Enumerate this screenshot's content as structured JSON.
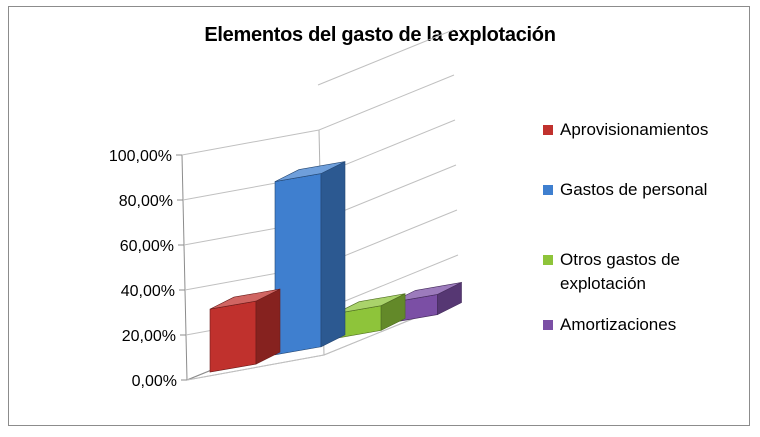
{
  "chart_data": {
    "type": "bar",
    "title": "Elementos del gasto de la explotación",
    "xlabel": "",
    "ylabel": "",
    "ylim": [
      0,
      100
    ],
    "ytick_labels": [
      "0,00%",
      "20,00%",
      "40,00%",
      "60,00%",
      "80,00%",
      "100,00%"
    ],
    "grid": true,
    "legend_position": "right",
    "series": [
      {
        "name": "Aprovisionamientos",
        "value": 28,
        "color": "#c0312d"
      },
      {
        "name": "Gastos de personal",
        "value": 77,
        "color": "#3f7fcf"
      },
      {
        "name": "Otros gastos de explotación",
        "value": 11,
        "color": "#8ec43a"
      },
      {
        "name": "Amortizaciones",
        "value": 9,
        "color": "#7b4fa5"
      }
    ]
  }
}
